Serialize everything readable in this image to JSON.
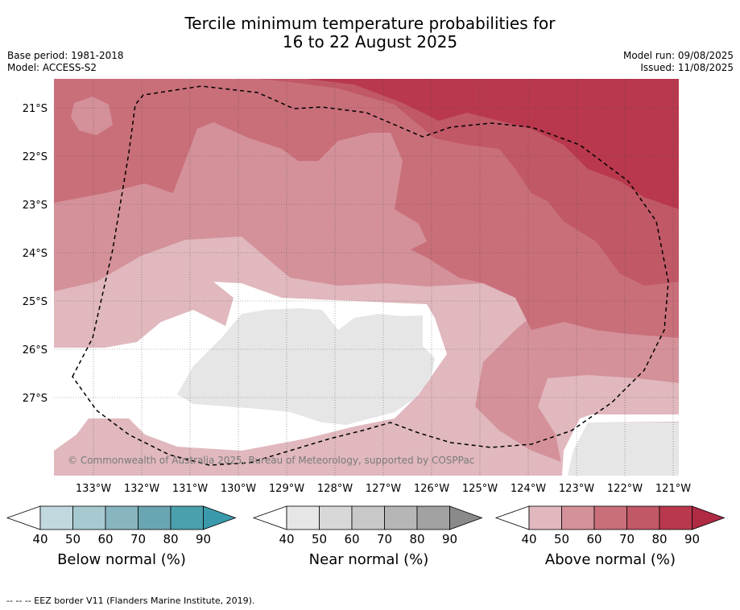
{
  "title": {
    "line1": "Tercile minimum temperature probabilities for",
    "line2": "16 to 22 August 2025"
  },
  "meta": {
    "base_period": "Base period: 1981-2018",
    "model": "Model: ACCESS-S2",
    "model_run": "Model run: 09/08/2025",
    "issued": "Issued: 11/08/2025"
  },
  "map": {
    "lat_labels": [
      "21°S",
      "22°S",
      "23°S",
      "24°S",
      "25°S",
      "26°S",
      "27°S"
    ],
    "lon_labels": [
      "133°W",
      "132°W",
      "131°W",
      "130°W",
      "129°W",
      "128°W",
      "127°W",
      "126°W",
      "125°W",
      "124°W",
      "123°W",
      "122°W",
      "121°W"
    ],
    "copyright": "© Commonwealth of Australia 2025, Bureau of Meteorology, supported by COSPPac",
    "colors": {
      "above_40": "#e0b8bd",
      "above_50": "#d4919a",
      "above_60": "#c96f7a",
      "above_70": "#c15866",
      "above_80": "#b9384d",
      "near_40": "#e6e6e6",
      "blank": "#ffffff"
    }
  },
  "colorbars": [
    {
      "label": "Below normal (%)",
      "ticks": [
        "40",
        "50",
        "60",
        "70",
        "80",
        "90"
      ],
      "colors": [
        "#c0d8de",
        "#a6cad0",
        "#88b6c0",
        "#6aa6b2",
        "#4ba0ae",
        "#3a9aab"
      ]
    },
    {
      "label": "Near normal (%)",
      "ticks": [
        "40",
        "50",
        "60",
        "70",
        "80",
        "90"
      ],
      "colors": [
        "#e6e6e6",
        "#d8d8d8",
        "#c8c8c8",
        "#b6b6b6",
        "#a2a2a2",
        "#8a8a8a"
      ]
    },
    {
      "label": "Above normal (%)",
      "ticks": [
        "40",
        "50",
        "60",
        "70",
        "80",
        "90"
      ],
      "colors": [
        "#e0b8bd",
        "#d4919a",
        "#c96f7a",
        "#c15866",
        "#b9384d",
        "#b02a44"
      ]
    }
  ],
  "footer": "--  --  -- EEZ border V11 (Flanders Marine Institute, 2019)."
}
